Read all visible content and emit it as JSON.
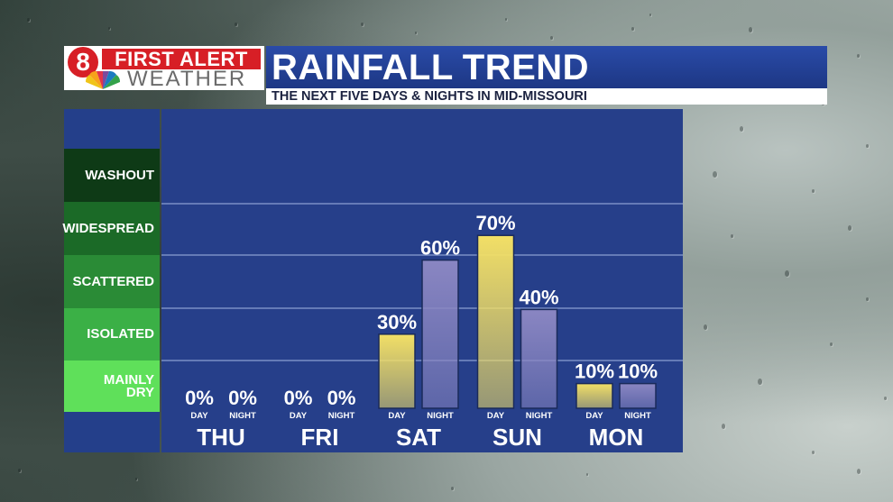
{
  "header": {
    "logo_channel": "8",
    "logo_alert": "FIRST ALERT",
    "logo_weather": "WEATHER",
    "title_bold": "RAINFALL",
    "title_light": "TREND",
    "subtitle": "THE NEXT FIVE DAYS & NIGHTS IN MID-MISSOURI"
  },
  "categories": [
    {
      "label": "WASHOUT",
      "color": "#0e3a16"
    },
    {
      "label": "WIDESPREAD",
      "color": "#1b6a27"
    },
    {
      "label": "SCATTERED",
      "color": "#2a8b36"
    },
    {
      "label": "ISOLATED",
      "color": "#3bb046"
    },
    {
      "label": "MAINLY DRY",
      "color": "#5fe05a"
    }
  ],
  "colors": {
    "day_bar": "#f2df66",
    "night_bar": "#8a86c2",
    "panel": "#263f8a",
    "gridline": "#8fa3d6"
  },
  "chart_data": {
    "type": "bar",
    "categories": [
      "THU",
      "FRI",
      "SAT",
      "SUN",
      "MON"
    ],
    "series": [
      {
        "name": "DAY",
        "values": [
          0,
          0,
          30,
          70,
          10
        ]
      },
      {
        "name": "NIGHT",
        "values": [
          0,
          0,
          60,
          40,
          10
        ]
      }
    ],
    "value_labels": {
      "DAY": [
        "0%",
        "0%",
        "30%",
        "70%",
        "10%"
      ],
      "NIGHT": [
        "0%",
        "0%",
        "60%",
        "40%",
        "10%"
      ]
    },
    "ylim": [
      0,
      100
    ],
    "grid": true
  }
}
